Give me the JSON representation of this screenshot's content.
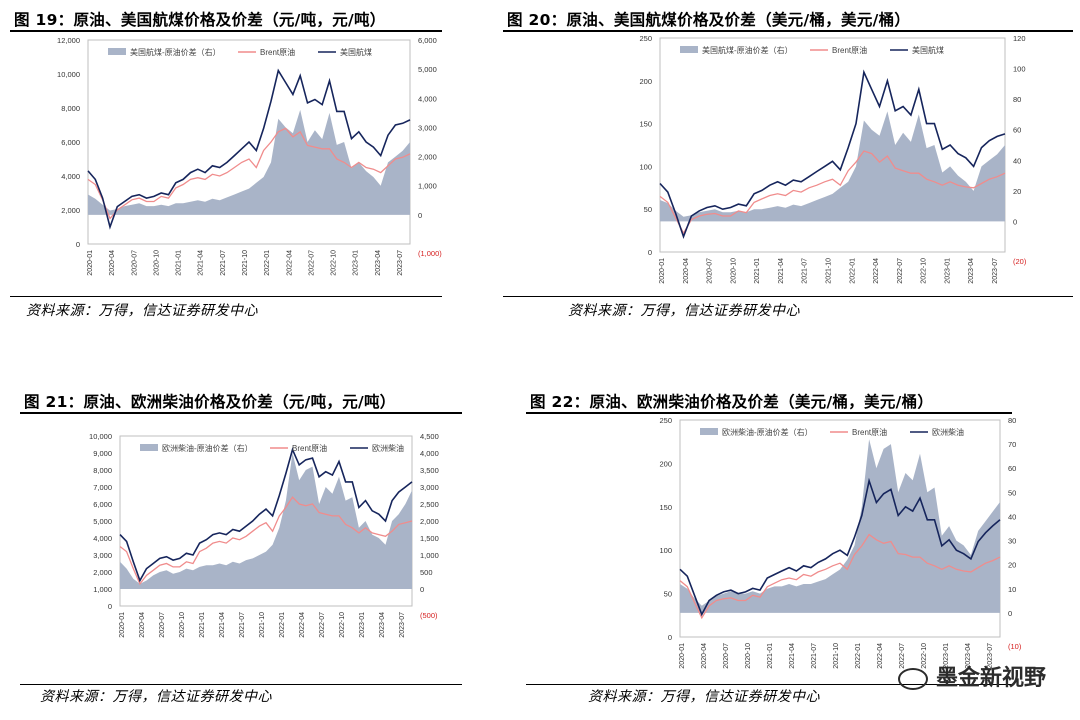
{
  "panels": [
    {
      "title": "图 19：原油、美国航煤价格及价差（元/吨，元/吨）",
      "source": "资料来源：万得，信达证券研发中心",
      "chart_data": {
        "type": "line",
        "legend": [
          "美国航煤-原油价差（右）",
          "Brent原油",
          "美国航煤"
        ],
        "legend_placement": "top",
        "ylim_left": [
          0,
          12000
        ],
        "ylim_right": [
          -1000,
          6000
        ],
        "yticks_left": [
          "0",
          "2,000",
          "4,000",
          "6,000",
          "8,000",
          "10,000",
          "12,000"
        ],
        "yticks_right": [
          "(1,000)",
          "0",
          "1,000",
          "2,000",
          "3,000",
          "4,000",
          "5,000",
          "6,000"
        ],
        "xticks": [
          "2020-01",
          "2020-04",
          "2020-07",
          "2020-10",
          "2021-01",
          "2021-04",
          "2021-07",
          "2021-10",
          "2022-01",
          "2022-04",
          "2022-07",
          "2022-10",
          "2023-01",
          "2023-04",
          "2023-07"
        ],
        "x": [
          0,
          1,
          2,
          3,
          4,
          5,
          6,
          7,
          8,
          9,
          10,
          11,
          12,
          13,
          14,
          15,
          16,
          17,
          18,
          19,
          20,
          21,
          22,
          23,
          24,
          25,
          26,
          27,
          28,
          29,
          30,
          31,
          32,
          33,
          34,
          35,
          36,
          37,
          38,
          39,
          40,
          41,
          42,
          43,
          44
        ],
        "series": [
          {
            "name": "美国航煤-原油价差（右）",
            "axis": "right",
            "values": [
              700,
              550,
              350,
              150,
              200,
              300,
              350,
              400,
              300,
              300,
              350,
              300,
              400,
              400,
              450,
              500,
              450,
              550,
              500,
              600,
              700,
              800,
              900,
              1100,
              1300,
              1800,
              3300,
              3000,
              2800,
              3600,
              2500,
              2900,
              2600,
              3500,
              2400,
              2500,
              1600,
              1800,
              1500,
              1300,
              1000,
              1800,
              2000,
              2200,
              2500
            ]
          },
          {
            "name": "Brent原油",
            "axis": "left",
            "values": [
              3800,
              3500,
              2600,
              1500,
              2000,
              2300,
              2600,
              2700,
              2500,
              2500,
              2800,
              2700,
              3300,
              3500,
              3800,
              3900,
              3800,
              4100,
              4000,
              4200,
              4500,
              4800,
              5000,
              4500,
              5500,
              6000,
              6600,
              6800,
              6300,
              6600,
              5800,
              5700,
              5600,
              5600,
              5000,
              4800,
              4500,
              4800,
              4500,
              4400,
              4200,
              4600,
              5000,
              5100,
              5300
            ]
          },
          {
            "name": "美国航煤",
            "axis": "left",
            "values": [
              4300,
              3800,
              2700,
              1000,
              2200,
              2500,
              2800,
              2900,
              2700,
              2800,
              3000,
              2900,
              3600,
              3800,
              4200,
              4400,
              4200,
              4600,
              4500,
              4800,
              5200,
              5600,
              6000,
              5500,
              6800,
              8400,
              10200,
              9500,
              8800,
              9900,
              8300,
              8500,
              8200,
              9600,
              7800,
              7800,
              6200,
              6600,
              6000,
              5700,
              5200,
              6400,
              7000,
              7100,
              7300
            ]
          }
        ]
      }
    },
    {
      "title": "图 20：原油、美国航煤价格及价差（美元/桶，美元/桶）",
      "source": "资料来源：万得，信达证券研发中心",
      "chart_data": {
        "type": "line",
        "legend": [
          "美国航煤-原油价差（右）",
          "Brent原油",
          "美国航煤"
        ],
        "legend_placement": "top",
        "ylim_left": [
          0,
          250
        ],
        "ylim_right": [
          -20,
          120
        ],
        "yticks_left": [
          "0",
          "50",
          "100",
          "150",
          "200",
          "250"
        ],
        "yticks_right": [
          "(20)",
          "0",
          "20",
          "40",
          "60",
          "80",
          "100",
          "120"
        ],
        "xticks": [
          "2020-01",
          "2020-04",
          "2020-07",
          "2020-10",
          "2021-01",
          "2021-04",
          "2021-07",
          "2021-10",
          "2022-01",
          "2022-04",
          "2022-07",
          "2022-10",
          "2023-01",
          "2023-04",
          "2023-07"
        ],
        "x": [
          0,
          1,
          2,
          3,
          4,
          5,
          6,
          7,
          8,
          9,
          10,
          11,
          12,
          13,
          14,
          15,
          16,
          17,
          18,
          19,
          20,
          21,
          22,
          23,
          24,
          25,
          26,
          27,
          28,
          29,
          30,
          31,
          32,
          33,
          34,
          35,
          36,
          37,
          38,
          39,
          40,
          41,
          42,
          43,
          44
        ],
        "series": [
          {
            "name": "美国航煤-原油价差（右）",
            "axis": "right",
            "values": [
              14,
              12,
              7,
              3,
              4,
              6,
              7,
              8,
              6,
              6,
              7,
              6,
              8,
              8,
              9,
              10,
              9,
              11,
              10,
              12,
              14,
              16,
              18,
              22,
              26,
              36,
              66,
              60,
              56,
              72,
              50,
              58,
              52,
              70,
              48,
              50,
              32,
              36,
              30,
              26,
              20,
              36,
              40,
              44,
              50
            ]
          },
          {
            "name": "Brent原油",
            "axis": "left",
            "values": [
              65,
              58,
              40,
              22,
              38,
              42,
              44,
              45,
              42,
              42,
              48,
              46,
              58,
              62,
              66,
              68,
              66,
              72,
              70,
              75,
              78,
              82,
              85,
              78,
              95,
              105,
              118,
              115,
              105,
              112,
              98,
              95,
              92,
              92,
              85,
              82,
              78,
              82,
              78,
              76,
              75,
              80,
              85,
              88,
              92
            ]
          },
          {
            "name": "美国航煤",
            "axis": "left",
            "values": [
              80,
              70,
              45,
              18,
              42,
              48,
              52,
              54,
              50,
              52,
              56,
              54,
              68,
              72,
              78,
              82,
              78,
              84,
              82,
              88,
              94,
              100,
              106,
              96,
              122,
              150,
              210,
              190,
              170,
              200,
              165,
              170,
              160,
              190,
              150,
              150,
              120,
              125,
              115,
              110,
              100,
              122,
              130,
              135,
              138
            ]
          }
        ]
      }
    },
    {
      "title": "图 21：原油、欧洲柴油价格及价差（元/吨，元/吨）",
      "source": "资料来源：万得，信达证券研发中心",
      "chart_data": {
        "type": "line",
        "legend": [
          "欧洲柴油-原油价差（右）",
          "Brent原油",
          "欧洲柴油"
        ],
        "legend_placement": "top",
        "ylim_left": [
          0,
          10000
        ],
        "ylim_right": [
          -500,
          4500
        ],
        "yticks_left": [
          "0",
          "1,000",
          "2,000",
          "3,000",
          "4,000",
          "5,000",
          "6,000",
          "7,000",
          "8,000",
          "9,000",
          "10,000"
        ],
        "yticks_right": [
          "(500)",
          "0",
          "500",
          "1,000",
          "1,500",
          "2,000",
          "2,500",
          "3,000",
          "3,500",
          "4,000",
          "4,500"
        ],
        "xticks": [
          "2020-01",
          "2020-04",
          "2020-07",
          "2020-10",
          "2021-01",
          "2021-04",
          "2021-07",
          "2021-10",
          "2022-01",
          "2022-04",
          "2022-07",
          "2022-10",
          "2023-01",
          "2023-04",
          "2023-07"
        ],
        "x": [
          0,
          1,
          2,
          3,
          4,
          5,
          6,
          7,
          8,
          9,
          10,
          11,
          12,
          13,
          14,
          15,
          16,
          17,
          18,
          19,
          20,
          21,
          22,
          23,
          24,
          25,
          26,
          27,
          28,
          29,
          30,
          31,
          32,
          33,
          34,
          35,
          36,
          37,
          38,
          39,
          40,
          41,
          42,
          43,
          44
        ],
        "series": [
          {
            "name": "欧洲柴油-原油价差（右）",
            "axis": "right",
            "values": [
              800,
              600,
              300,
              150,
              250,
              400,
              500,
              550,
              450,
              500,
              600,
              550,
              650,
              700,
              700,
              750,
              700,
              800,
              750,
              850,
              900,
              1000,
              1100,
              1300,
              1800,
              2600,
              4000,
              3200,
              3500,
              3600,
              2500,
              3000,
              2800,
              3300,
              2600,
              2700,
              1800,
              2000,
              1600,
              1500,
              1300,
              2000,
              2200,
              2500,
              2900
            ]
          },
          {
            "name": "Brent原油",
            "axis": "left",
            "values": [
              3500,
              3200,
              2200,
              1300,
              1800,
              2100,
              2400,
              2500,
              2300,
              2300,
              2600,
              2500,
              3200,
              3400,
              3700,
              3800,
              3700,
              4000,
              3900,
              4100,
              4400,
              4700,
              4900,
              4400,
              5300,
              5800,
              6400,
              6000,
              5900,
              6000,
              5500,
              5400,
              5300,
              5300,
              4800,
              4600,
              4300,
              4600,
              4300,
              4200,
              4100,
              4400,
              4800,
              4900,
              5000
            ]
          },
          {
            "name": "欧洲柴油",
            "axis": "left",
            "values": [
              4200,
              3800,
              2600,
              1500,
              2200,
              2500,
              2800,
              2900,
              2700,
              2800,
              3100,
              3000,
              3700,
              3900,
              4200,
              4300,
              4200,
              4500,
              4400,
              4700,
              5000,
              5400,
              5700,
              5300,
              6500,
              7800,
              9200,
              8300,
              8600,
              8700,
              7600,
              7900,
              7700,
              8500,
              7300,
              7300,
              5800,
              6200,
              5600,
              5400,
              5000,
              6200,
              6700,
              7000,
              7300
            ]
          }
        ]
      }
    },
    {
      "title": "图 22：原油、欧洲柴油价格及价差（美元/桶，美元/桶）",
      "source": "资料来源：万得，信达证券研发中心",
      "chart_data": {
        "type": "line",
        "legend": [
          "欧洲柴油-原油价差（右）",
          "Brent原油",
          "欧洲柴油"
        ],
        "legend_placement": "top",
        "ylim_left": [
          0,
          250
        ],
        "ylim_right": [
          -10,
          80
        ],
        "yticks_left": [
          "0",
          "50",
          "100",
          "150",
          "200",
          "250"
        ],
        "yticks_right": [
          "(10)",
          "0",
          "10",
          "20",
          "30",
          "40",
          "50",
          "60",
          "70",
          "80"
        ],
        "xticks": [
          "2020-01",
          "2020-04",
          "2020-07",
          "2020-10",
          "2021-01",
          "2021-04",
          "2021-07",
          "2021-10",
          "2022-01",
          "2022-04",
          "2022-07",
          "2022-10",
          "2023-01",
          "2023-04",
          "2023-07"
        ],
        "x": [
          0,
          1,
          2,
          3,
          4,
          5,
          6,
          7,
          8,
          9,
          10,
          11,
          12,
          13,
          14,
          15,
          16,
          17,
          18,
          19,
          20,
          21,
          22,
          23,
          24,
          25,
          26,
          27,
          28,
          29,
          30,
          31,
          32,
          33,
          34,
          35,
          36,
          37,
          38,
          39,
          40,
          41,
          42,
          43,
          44
        ],
        "series": [
          {
            "name": "欧洲柴油-原油价差（右）",
            "axis": "right",
            "values": [
              12,
              10,
              6,
              3,
              5,
              7,
              8,
              9,
              8,
              8,
              9,
              8,
              10,
              11,
              11,
              12,
              11,
              12,
              12,
              13,
              14,
              16,
              18,
              22,
              28,
              44,
              72,
              60,
              68,
              70,
              50,
              58,
              55,
              66,
              50,
              52,
              32,
              36,
              30,
              28,
              24,
              34,
              38,
              42,
              46
            ]
          },
          {
            "name": "Brent原油",
            "axis": "left",
            "values": [
              65,
              58,
              40,
              22,
              36,
              42,
              44,
              45,
              42,
              42,
              48,
              46,
              58,
              62,
              66,
              68,
              66,
              72,
              70,
              75,
              78,
              82,
              85,
              78,
              95,
              105,
              118,
              112,
              108,
              110,
              96,
              95,
              92,
              92,
              85,
              82,
              78,
              82,
              78,
              76,
              75,
              80,
              85,
              88,
              92
            ]
          },
          {
            "name": "欧洲柴油",
            "axis": "left",
            "values": [
              78,
              70,
              48,
              26,
              42,
              48,
              52,
              54,
              50,
              52,
              56,
              54,
              68,
              72,
              76,
              80,
              76,
              82,
              80,
              86,
              90,
              96,
              100,
              94,
              115,
              140,
              180,
              155,
              165,
              170,
              140,
              150,
              145,
              160,
              135,
              135,
              105,
              112,
              100,
              96,
              90,
              110,
              120,
              128,
              135
            ]
          }
        ]
      }
    }
  ],
  "watermark": "墨金新视野",
  "colors": {
    "spread": "#a9b4c8",
    "brent": "#f08c8c",
    "product": "#16255c",
    "axis_neg": "#d62020"
  }
}
